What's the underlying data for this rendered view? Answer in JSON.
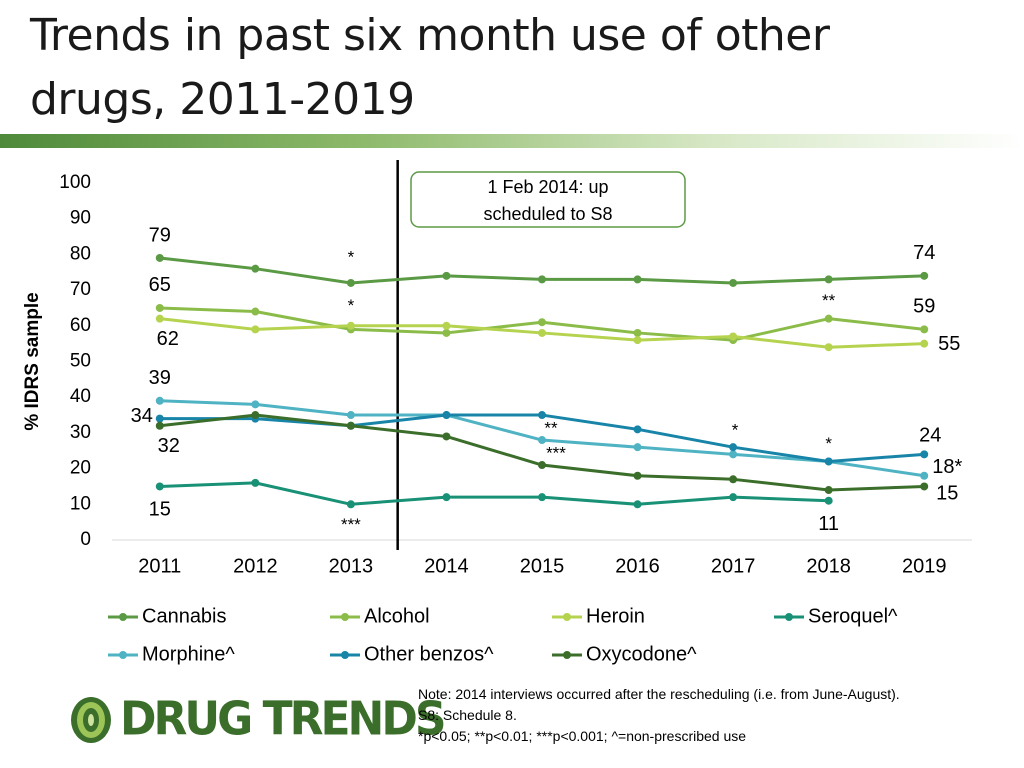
{
  "page": {
    "title": "Trends in past six month use of other drugs, 2011-2019",
    "notes": [
      "Note: 2014 interviews occurred after the rescheduling (i.e. from June-August).",
      "S8: Schedule 8.",
      "*p<0.05; **p<0.01; ***p<0.001; ^=non-prescribed use"
    ],
    "logo_text": "DRUG TRENDS"
  },
  "chart_data": {
    "type": "line",
    "title": "Trends in past six month use of other drugs, 2011-2019",
    "xlabel": "",
    "ylabel": "% IDRS sample",
    "ylim": [
      0,
      100
    ],
    "yticks": [
      0,
      10,
      20,
      30,
      40,
      50,
      60,
      70,
      80,
      90,
      100
    ],
    "categories": [
      "2011",
      "2012",
      "2013",
      "2014",
      "2015",
      "2016",
      "2017",
      "2018",
      "2019"
    ],
    "legend_position": "bottom",
    "series": [
      {
        "name": "Cannabis",
        "color": "#5b9a45",
        "values": [
          79,
          76,
          72,
          74,
          73,
          73,
          72,
          73,
          74
        ]
      },
      {
        "name": "Alcohol",
        "color": "#8bbc49",
        "values": [
          65,
          64,
          59,
          58,
          61,
          58,
          56,
          62,
          59
        ]
      },
      {
        "name": "Heroin",
        "color": "#b5d34f",
        "values": [
          62,
          59,
          60,
          60,
          58,
          56,
          57,
          54,
          55
        ]
      },
      {
        "name": "Seroquel^",
        "color": "#199176",
        "values": [
          15,
          16,
          10,
          12,
          12,
          10,
          12,
          11,
          null
        ]
      },
      {
        "name": "Morphine^",
        "color": "#4fb3c4",
        "values": [
          39,
          38,
          35,
          35,
          28,
          26,
          24,
          22,
          18
        ]
      },
      {
        "name": "Other benzos^",
        "color": "#1784a8",
        "values": [
          34,
          34,
          32,
          35,
          35,
          31,
          26,
          22,
          24
        ]
      },
      {
        "name": "Oxycodone^",
        "color": "#3b6e2a",
        "values": [
          32,
          35,
          32,
          29,
          21,
          18,
          17,
          14,
          15
        ]
      }
    ],
    "value_labels": [
      {
        "text": "79",
        "series": "Cannabis",
        "category": "2011"
      },
      {
        "text": "74",
        "series": "Cannabis",
        "category": "2019"
      },
      {
        "text": "65",
        "series": "Alcohol",
        "category": "2011"
      },
      {
        "text": "59",
        "series": "Alcohol",
        "category": "2019"
      },
      {
        "text": "62",
        "series": "Heroin",
        "category": "2011"
      },
      {
        "text": "55",
        "series": "Heroin",
        "category": "2019"
      },
      {
        "text": "39",
        "series": "Morphine^",
        "category": "2011"
      },
      {
        "text": "18*",
        "series": "Morphine^",
        "category": "2019"
      },
      {
        "text": "34",
        "series": "Other benzos^",
        "category": "2011"
      },
      {
        "text": "24",
        "series": "Other benzos^",
        "category": "2019"
      },
      {
        "text": "32",
        "series": "Oxycodone^",
        "category": "2011"
      },
      {
        "text": "15",
        "series": "Oxycodone^",
        "category": "2019"
      },
      {
        "text": "15",
        "series": "Seroquel^",
        "category": "2011"
      },
      {
        "text": "11",
        "series": "Seroquel^",
        "category": "2018"
      }
    ],
    "significance_marks": [
      {
        "text": "*",
        "series": "Cannabis",
        "category": "2013"
      },
      {
        "text": "*",
        "series": "Alcohol",
        "category": "2013"
      },
      {
        "text": "***",
        "series": "Seroquel^",
        "category": "2013"
      },
      {
        "text": "**",
        "series": "Morphine^",
        "category": "2015"
      },
      {
        "text": "***",
        "series": "Oxycodone^",
        "category": "2015"
      },
      {
        "text": "*",
        "series": "Other benzos^",
        "category": "2017"
      },
      {
        "text": "**",
        "series": "Alcohol",
        "category": "2018"
      },
      {
        "text": "*",
        "series": "Other benzos^",
        "category": "2018"
      }
    ],
    "annotation": {
      "text_lines": [
        "1 Feb 2014: up",
        "scheduled to S8"
      ],
      "event_between": [
        "2013",
        "2014"
      ]
    },
    "grid": false
  }
}
